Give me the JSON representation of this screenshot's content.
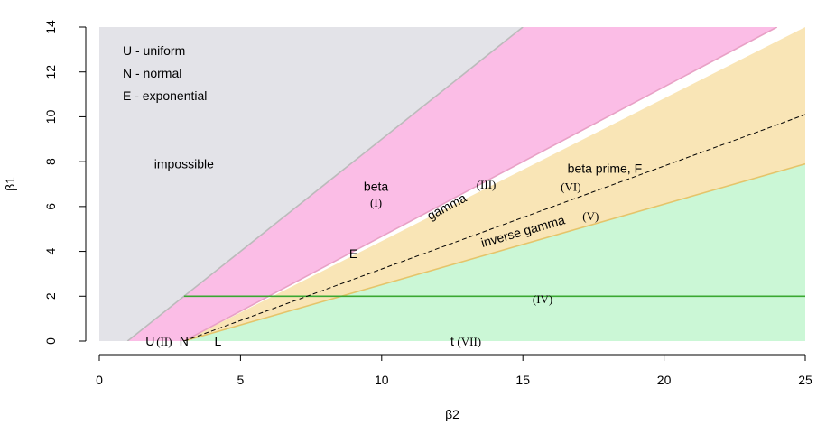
{
  "chart_data": {
    "type": "area",
    "xlabel": "β2",
    "ylabel": "β1",
    "xlim": [
      0,
      25
    ],
    "ylim": [
      0,
      14
    ],
    "x_ticks": [
      0,
      5,
      10,
      15,
      20,
      25
    ],
    "y_ticks": [
      0,
      2,
      4,
      6,
      8,
      10,
      12,
      14
    ],
    "colors": {
      "impossible": "#e3e3e8",
      "beta": "#fbbde6",
      "upper_mid": "#f9e5b6",
      "lower": "#cbf7d6",
      "boundary_impossible": "#bbbbbb",
      "boundary_gamma": "#e8a1c6",
      "boundary_inverse_gamma": "#e5c46a",
      "line_iv": "#3aa832",
      "dashed": "#000000"
    },
    "regions": [
      {
        "name": "impossible",
        "polygon": [
          [
            0,
            0
          ],
          [
            1,
            0
          ],
          [
            15,
            14
          ],
          [
            0,
            14
          ]
        ]
      },
      {
        "name": "beta",
        "polygon": [
          [
            1,
            0
          ],
          [
            3,
            0
          ],
          [
            24,
            14
          ],
          [
            15,
            14
          ]
        ]
      },
      {
        "name": "upper_mid",
        "polygon": [
          [
            3,
            0
          ],
          [
            25,
            14
          ],
          [
            25,
            7.9
          ],
          [
            3,
            0
          ]
        ]
      },
      {
        "name": "lower",
        "polygon": [
          [
            3,
            0
          ],
          [
            25,
            7.9
          ],
          [
            25,
            0
          ]
        ]
      }
    ],
    "lines": [
      {
        "name": "impossible_boundary",
        "points": [
          [
            1,
            0
          ],
          [
            15,
            14
          ]
        ],
        "style": "solid"
      },
      {
        "name": "gamma_III",
        "points": [
          [
            3,
            0
          ],
          [
            24,
            14
          ]
        ],
        "style": "solid"
      },
      {
        "name": "inverse_gamma_V",
        "points": [
          [
            3,
            0
          ],
          [
            25,
            7.9
          ]
        ],
        "style": "solid"
      },
      {
        "name": "type_IV",
        "points": [
          [
            3,
            2
          ],
          [
            25,
            2
          ]
        ],
        "style": "solid"
      },
      {
        "name": "beta_prime_dashed",
        "points": [
          [
            3,
            0
          ],
          [
            25,
            10.1
          ]
        ],
        "style": "dashed"
      }
    ],
    "legend": [
      "U - uniform",
      "N - normal",
      "E - exponential"
    ],
    "legend_position": "top-left",
    "annotations": [
      {
        "id": "impossible",
        "text": "impossible",
        "x": 3.0,
        "y": 7.9,
        "rotate": false,
        "serif": false
      },
      {
        "id": "beta",
        "text": "beta",
        "x": 9.8,
        "y": 6.9,
        "rotate": false,
        "serif": false
      },
      {
        "id": "beta-roman",
        "text": "(I)",
        "x": 9.8,
        "y": 6.2,
        "rotate": false,
        "serif": true
      },
      {
        "id": "gamma",
        "text": "gamma",
        "x": 12.3,
        "y": 6.0,
        "rotate": true,
        "serif": false
      },
      {
        "id": "gamma-roman",
        "text": "(III)",
        "x": 13.7,
        "y": 7.0,
        "rotate": false,
        "serif": true
      },
      {
        "id": "beta-prime",
        "text": "beta prime, F",
        "x": 17.9,
        "y": 7.7,
        "rotate": false,
        "serif": false
      },
      {
        "id": "beta-prime-roman",
        "text": "(VI)",
        "x": 16.7,
        "y": 6.9,
        "rotate": false,
        "serif": true
      },
      {
        "id": "inverse-gamma",
        "text": "inverse  gamma",
        "x": 15.0,
        "y": 4.9,
        "rotate": true,
        "serif": false
      },
      {
        "id": "inverse-gamma-roman",
        "text": "(V)",
        "x": 17.4,
        "y": 5.6,
        "rotate": false,
        "serif": true
      },
      {
        "id": "exponential-point",
        "text": "E",
        "x": 9.0,
        "y": 3.9,
        "rotate": false,
        "serif": false
      },
      {
        "id": "type-iv",
        "text": "(IV)",
        "x": 15.7,
        "y": 1.9,
        "rotate": false,
        "serif": true
      },
      {
        "id": "uniform-point",
        "text": "U",
        "x": 1.8,
        "y": 0,
        "rotate": false,
        "serif": false
      },
      {
        "id": "uniform-roman",
        "text": "(II)",
        "x": 2.3,
        "y": 0,
        "rotate": false,
        "serif": true
      },
      {
        "id": "normal-point",
        "text": "N",
        "x": 3.0,
        "y": 0,
        "rotate": false,
        "serif": false
      },
      {
        "id": "logistic-point",
        "text": "L",
        "x": 4.2,
        "y": 0,
        "rotate": false,
        "serif": false
      },
      {
        "id": "t-point",
        "text": "t",
        "x": 12.5,
        "y": 0,
        "rotate": false,
        "serif": false
      },
      {
        "id": "t-roman",
        "text": "(VII)",
        "x": 13.1,
        "y": 0,
        "rotate": false,
        "serif": true
      }
    ]
  }
}
